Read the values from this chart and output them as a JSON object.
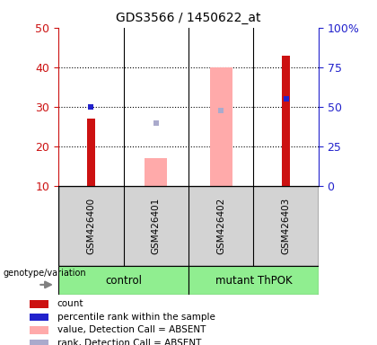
{
  "title": "GDS3566 / 1450622_at",
  "samples": [
    "GSM426400",
    "GSM426401",
    "GSM426402",
    "GSM426403"
  ],
  "group_labels": [
    "control",
    "mutant ThPOK"
  ],
  "ylim": [
    10,
    50
  ],
  "y2lim": [
    0,
    100
  ],
  "yticks": [
    10,
    20,
    30,
    40,
    50
  ],
  "y2ticks": [
    0,
    25,
    50,
    75,
    100
  ],
  "red_bars": [
    27,
    null,
    null,
    43
  ],
  "pink_bars": [
    null,
    17,
    40,
    null
  ],
  "blue_squares": [
    30,
    null,
    null,
    32
  ],
  "lightblue_squares": [
    null,
    26,
    29,
    null
  ],
  "red_bar_width": 0.12,
  "pink_bar_width": 0.35,
  "red_color": "#cc1111",
  "pink_color": "#ffaaaa",
  "blue_color": "#2222cc",
  "lightblue_color": "#aaaacc",
  "left_tick_color": "#cc1111",
  "right_tick_color": "#2222cc",
  "legend_labels": [
    "count",
    "percentile rank within the sample",
    "value, Detection Call = ABSENT",
    "rank, Detection Call = ABSENT"
  ],
  "legend_colors": [
    "#cc1111",
    "#2222cc",
    "#ffaaaa",
    "#aaaacc"
  ]
}
